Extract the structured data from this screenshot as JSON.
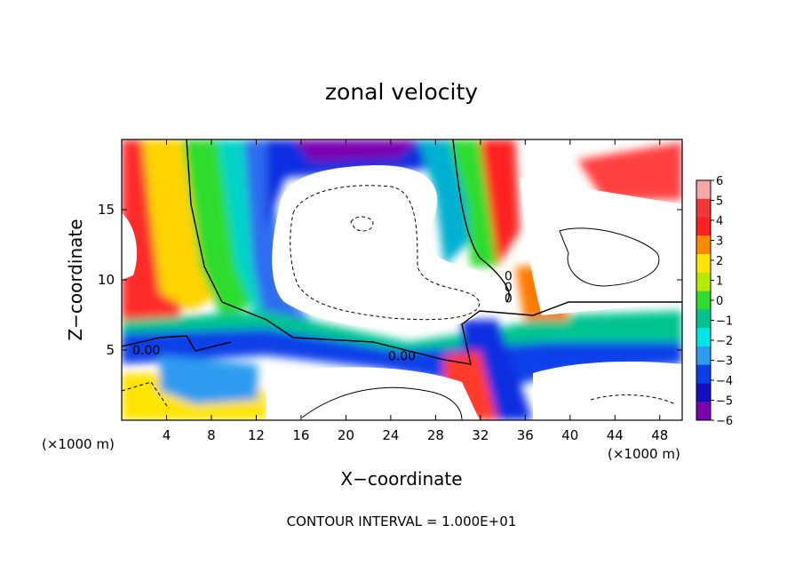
{
  "chart_data": {
    "type": "heatmap",
    "title": "zonal velocity",
    "xlabel": "X−coordinate",
    "ylabel": "Z−coordinate",
    "x_unit_left": "(×1000 m)",
    "x_unit_right": "(×1000 m)",
    "xlim": [
      0,
      50
    ],
    "ylim": [
      0,
      20
    ],
    "x_ticks": [
      4,
      8,
      12,
      16,
      20,
      24,
      28,
      32,
      36,
      40,
      44,
      48
    ],
    "x_tick_labels": [
      "4",
      "8",
      "12",
      "16",
      "20",
      "24",
      "28",
      "32",
      "36",
      "40",
      "44",
      "48"
    ],
    "y_ticks": [
      5,
      10,
      15
    ],
    "y_tick_labels": [
      "5",
      "10",
      "15"
    ],
    "colorbar": {
      "levels": [
        6,
        5,
        4,
        3,
        2,
        1,
        0,
        -1,
        -2,
        -3,
        -4,
        -5,
        -6
      ],
      "labels": [
        "6",
        "5",
        "4",
        "3",
        "2",
        "1",
        "0",
        "−1",
        "−2",
        "−3",
        "−4",
        "−5",
        "−6"
      ],
      "colors": [
        "#f4a7a7",
        "#f03838",
        "#ff2020",
        "#ff8a00",
        "#ffe400",
        "#b8ea00",
        "#2edc2e",
        "#00c490",
        "#00e6e6",
        "#2d9bf0",
        "#0a3fe8",
        "#1010c0",
        "#7a00b0"
      ]
    },
    "contour_labels": [
      {
        "text": "0.00",
        "x": 2.2,
        "y": 5.0
      },
      {
        "text": "0.00",
        "x": 25.0,
        "y": 4.6
      },
      {
        "text": "0",
        "x": 34.5,
        "y": 10.3
      },
      {
        "text": "0",
        "x": 34.5,
        "y": 9.5
      },
      {
        "text": "0",
        "x": 34.5,
        "y": 8.7
      }
    ],
    "footer": "CONTOUR INTERVAL = 1.000E+01"
  }
}
